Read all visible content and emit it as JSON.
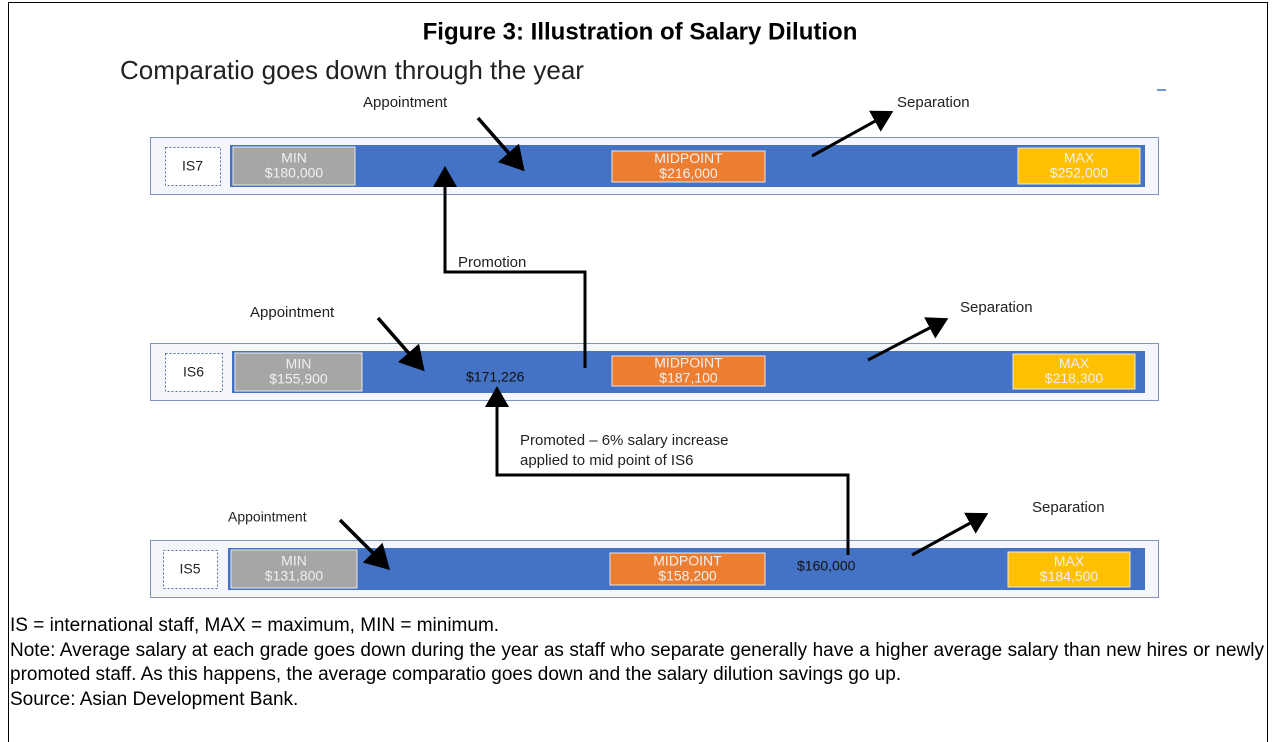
{
  "title": "Figure 3: Illustration of Salary Dilution",
  "subtitle": "Comparatio goes down through the year",
  "grades": [
    {
      "label": "IS7",
      "min": {
        "label": "MIN",
        "value": "$180,000"
      },
      "mid": {
        "label": "MIDPOINT",
        "value": "$216,000"
      },
      "max": {
        "label": "MAX",
        "value": "$252,000"
      },
      "appointment": "Appointment",
      "separation": "Separation"
    },
    {
      "label": "IS6",
      "min": {
        "label": "MIN",
        "value": "$155,900"
      },
      "mid": {
        "label": "MIDPOINT",
        "value": "$187,100"
      },
      "max": {
        "label": "MAX",
        "value": "$218,300"
      },
      "appointment": "Appointment",
      "separation": "Separation"
    },
    {
      "label": "IS5",
      "min": {
        "label": "MIN",
        "value": "$131,800"
      },
      "mid": {
        "label": "MIDPOINT",
        "value": "$158,200"
      },
      "max": {
        "label": "MAX",
        "value": "$184,500"
      },
      "appointment": "Appointment",
      "separation": "Separation"
    }
  ],
  "promotion": "Promotion",
  "is6_salary": "$171,226",
  "promoted_note": [
    "Promoted – 6% salary increase",
    "applied to mid point of IS6"
  ],
  "is5_salary": "$160,000",
  "footnotes": {
    "abbreviations": "IS = international staff, MAX = maximum, MIN = minimum.",
    "note": "Note:  Average salary at each grade goes down during the year as staff who separate generally have a higher average salary than new hires or newly promoted staff. As this happens, the average comparatio goes down and the salary dilution savings go up.",
    "source": "Source: Asian Development Bank."
  }
}
